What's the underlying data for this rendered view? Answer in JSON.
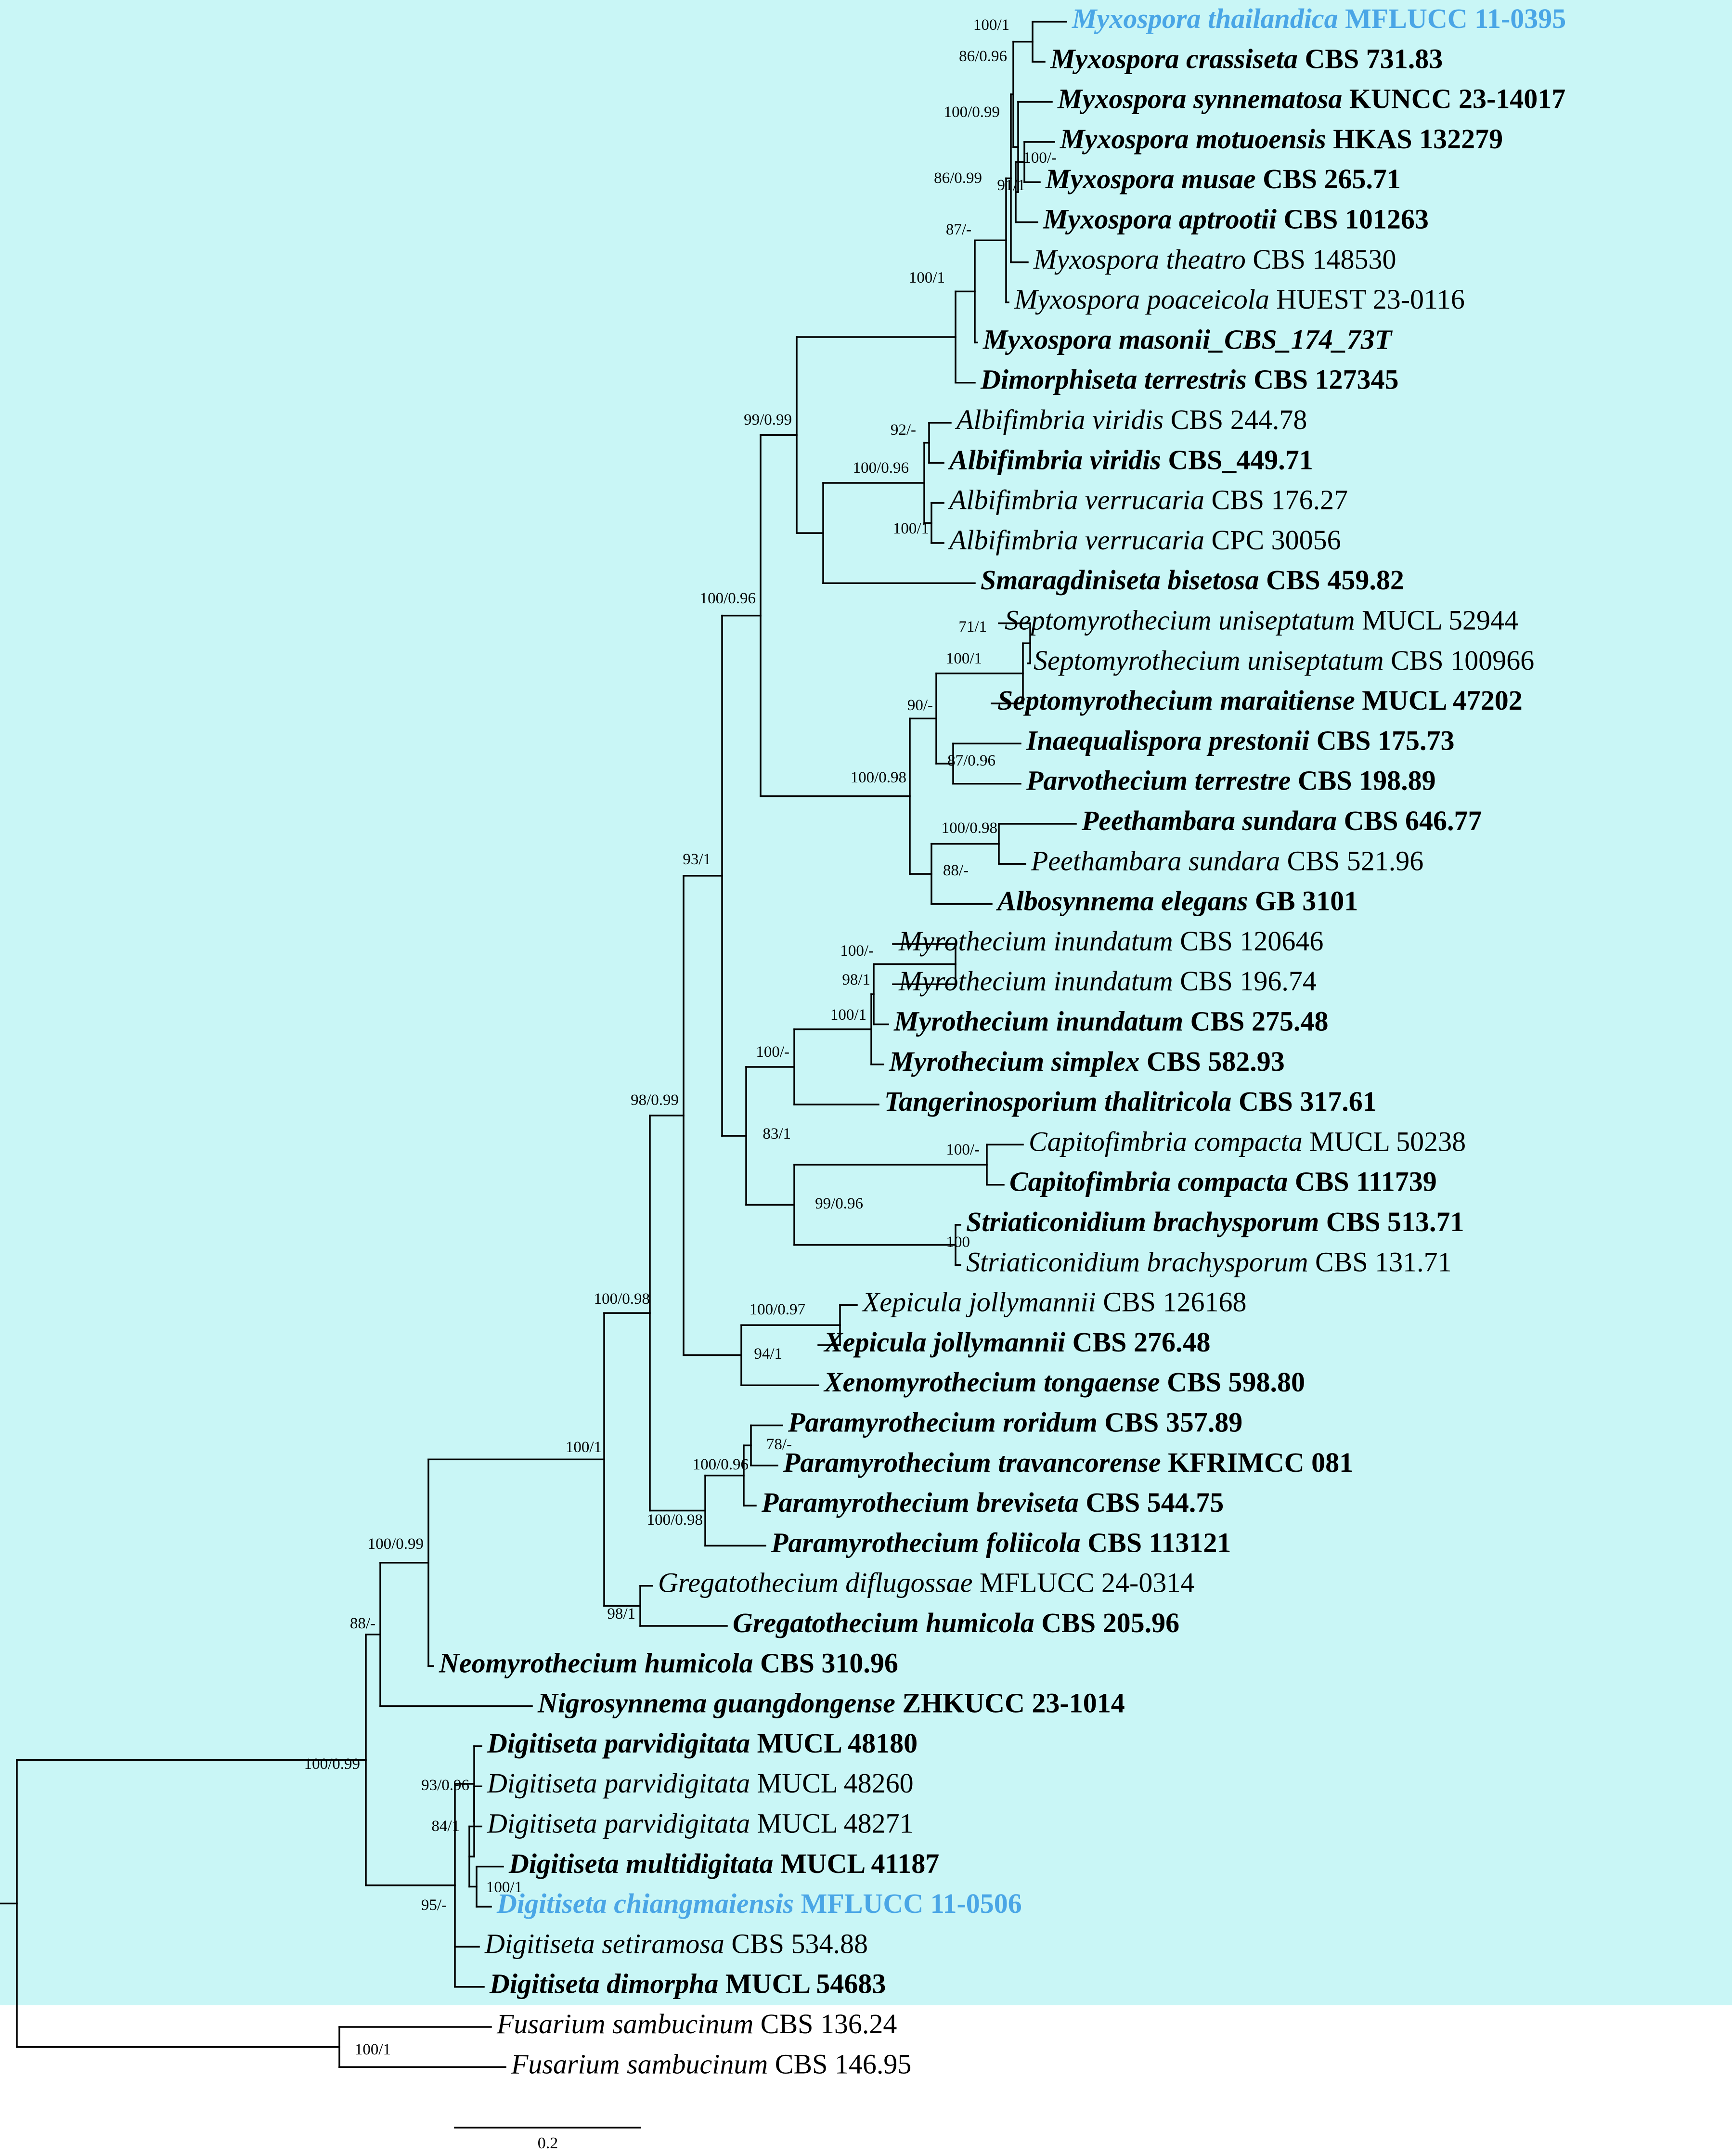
{
  "taxa": [
    {
      "id": "t1",
      "genus_species": "Myxospora thailandica",
      "strain": "MFLUCC 11-0395",
      "bold": true,
      "highlight": true
    },
    {
      "id": "t2",
      "genus_species": "Myxospora crassiseta",
      "strain": "CBS 731.83",
      "bold": true
    },
    {
      "id": "t3",
      "genus_species": "Myxospora synnematosa",
      "strain": "KUNCC 23-14017",
      "bold": true
    },
    {
      "id": "t4",
      "genus_species": "Myxospora motuoensis",
      "strain": "HKAS 132279",
      "bold": true
    },
    {
      "id": "t5",
      "genus_species": "Myxospora musae",
      "strain": "CBS 265.71",
      "bold": true
    },
    {
      "id": "t6",
      "genus_species": "Myxospora aptrootii",
      "strain": "CBS 101263",
      "bold": true
    },
    {
      "id": "t7",
      "genus_species": "Myxospora theatro",
      "strain": "CBS 148530",
      "bold": false
    },
    {
      "id": "t8",
      "genus_species": "Myxospora poaceicola",
      "strain": "HUEST 23-0116",
      "bold": false
    },
    {
      "id": "t9",
      "genus_species": "Myxospora masonii_CBS_174_73T",
      "strain": "",
      "bold": true
    },
    {
      "id": "t10",
      "genus_species": "Dimorphiseta terrestris",
      "strain": "CBS 127345",
      "bold": true
    },
    {
      "id": "t11",
      "genus_species": "Albifimbria viridis",
      "strain": "CBS 244.78",
      "bold": false
    },
    {
      "id": "t12",
      "genus_species": "Albifimbria viridis",
      "strain": "CBS_449.71",
      "bold": true
    },
    {
      "id": "t13",
      "genus_species": "Albifimbria verrucaria",
      "strain": "CBS 176.27",
      "bold": false
    },
    {
      "id": "t14",
      "genus_species": "Albifimbria verrucaria",
      "strain": "CPC 30056",
      "bold": false
    },
    {
      "id": "t15",
      "genus_species": "Smaragdiniseta bisetosa",
      "strain": "CBS 459.82",
      "bold": true
    },
    {
      "id": "t16",
      "genus_species": "Septomyrothecium uniseptatum",
      "strain": "MUCL 52944",
      "bold": false
    },
    {
      "id": "t17",
      "genus_species": "Septomyrothecium uniseptatum",
      "strain": "CBS 100966",
      "bold": false
    },
    {
      "id": "t18",
      "genus_species": "Septomyrothecium maraitiense",
      "strain": "MUCL 47202",
      "bold": true
    },
    {
      "id": "t19",
      "genus_species": "Inaequalispora prestonii",
      "strain": "CBS 175.73",
      "bold": true
    },
    {
      "id": "t20",
      "genus_species": "Parvothecium terrestre",
      "strain": "CBS 198.89",
      "bold": true
    },
    {
      "id": "t21",
      "genus_species": "Peethambara sundara",
      "strain": "CBS 646.77",
      "bold": true
    },
    {
      "id": "t22",
      "genus_species": "Peethambara sundara",
      "strain": "CBS 521.96",
      "bold": false
    },
    {
      "id": "t23",
      "genus_species": "Albosynnema elegans",
      "strain": "GB 3101",
      "bold": true
    },
    {
      "id": "t24",
      "genus_species": "Myrothecium inundatum",
      "strain": "CBS 120646",
      "bold": false
    },
    {
      "id": "t25",
      "genus_species": "Myrothecium inundatum",
      "strain": "CBS 196.74",
      "bold": false
    },
    {
      "id": "t26",
      "genus_species": "Myrothecium inundatum",
      "strain": "CBS 275.48",
      "bold": true
    },
    {
      "id": "t27",
      "genus_species": "Myrothecium simplex",
      "strain": "CBS 582.93",
      "bold": true
    },
    {
      "id": "t28",
      "genus_species": "Tangerinosporium thalitricola",
      "strain": "CBS 317.61",
      "bold": true
    },
    {
      "id": "t29",
      "genus_species": "Capitofimbria compacta",
      "strain": "MUCL 50238",
      "bold": false
    },
    {
      "id": "t30",
      "genus_species": "Capitofimbria compacta",
      "strain": "CBS 111739",
      "bold": true
    },
    {
      "id": "t31",
      "genus_species": "Striaticonidium brachysporum",
      "strain": "CBS 513.71",
      "bold": true
    },
    {
      "id": "t32",
      "genus_species": "Striaticonidium brachysporum",
      "strain": "CBS 131.71",
      "bold": false
    },
    {
      "id": "t33",
      "genus_species": "Xepicula jollymannii",
      "strain": "CBS 126168",
      "bold": false
    },
    {
      "id": "t34",
      "genus_species": "Xepicula jollymannii",
      "strain": "CBS 276.48",
      "bold": true
    },
    {
      "id": "t35",
      "genus_species": "Xenomyrothecium tongaense",
      "strain": "CBS 598.80",
      "bold": true
    },
    {
      "id": "t36",
      "genus_species": "Paramyrothecium roridum",
      "strain": "CBS 357.89",
      "bold": true
    },
    {
      "id": "t37",
      "genus_species": "Paramyrothecium travancorense",
      "strain": "KFRIMCC 081",
      "bold": true
    },
    {
      "id": "t38",
      "genus_species": "Paramyrothecium breviseta",
      "strain": "CBS 544.75",
      "bold": true
    },
    {
      "id": "t39",
      "genus_species": "Paramyrothecium foliicola",
      "strain": "CBS 113121",
      "bold": true
    },
    {
      "id": "t40",
      "genus_species": "Gregatothecium diflugossae",
      "strain": "MFLUCC 24-0314",
      "bold": false
    },
    {
      "id": "t41",
      "genus_species": "Gregatothecium humicola",
      "strain": "CBS 205.96",
      "bold": true
    },
    {
      "id": "t42",
      "genus_species": "Neomyrothecium humicola",
      "strain": "CBS 310.96",
      "bold": true
    },
    {
      "id": "t43",
      "genus_species": "Nigrosynnema guangdongense",
      "strain": "ZHKUCC 23-1014",
      "bold": true
    },
    {
      "id": "t44",
      "genus_species": "Digitiseta parvidigitata",
      "strain": "MUCL 48180",
      "bold": true
    },
    {
      "id": "t45",
      "genus_species": "Digitiseta parvidigitata",
      "strain": "MUCL 48260",
      "bold": false
    },
    {
      "id": "t46",
      "genus_species": "Digitiseta parvidigitata",
      "strain": "MUCL 48271",
      "bold": false
    },
    {
      "id": "t47",
      "genus_species": "Digitiseta multidigitata",
      "strain": "MUCL 41187",
      "bold": true
    },
    {
      "id": "t48",
      "genus_species": "Digitiseta chiangmaiensis",
      "strain": "MFLUCC 11-0506",
      "bold": true,
      "highlight": true
    },
    {
      "id": "t49",
      "genus_species": "Digitiseta setiramosa",
      "strain": "CBS 534.88",
      "bold": false
    },
    {
      "id": "t50",
      "genus_species": "Digitiseta dimorpha",
      "strain": "MUCL 54683",
      "bold": true
    },
    {
      "id": "t51",
      "genus_species": "Fusarium sambucinum",
      "strain": "CBS 136.24",
      "bold": false
    },
    {
      "id": "t52",
      "genus_species": "Fusarium sambucinum",
      "strain": "CBS 146.95",
      "bold": false
    }
  ],
  "supports": [
    {
      "node": "n_t1_t2",
      "label": "100/1"
    },
    {
      "node": "n_cras",
      "label": "86/0.96"
    },
    {
      "node": "n_syn",
      "label": "100/0.99"
    },
    {
      "node": "n_motu",
      "label": "100/-"
    },
    {
      "node": "n_musae",
      "label": "91/1"
    },
    {
      "node": "n_apt",
      "label": "86/0.99"
    },
    {
      "node": "n_theatro",
      "label": "87/-"
    },
    {
      "node": "n_myxo",
      "label": "100/1"
    },
    {
      "node": "n_albiv",
      "label": "92/-"
    },
    {
      "node": "n_albi",
      "label": "100/0.96"
    },
    {
      "node": "n_albverr",
      "label": "100/1"
    },
    {
      "node": "n_upper",
      "label": "99/0.99"
    },
    {
      "node": "n_sept",
      "label": "71/1"
    },
    {
      "node": "n_sept2",
      "label": "100/1"
    },
    {
      "node": "n_sept3",
      "label": "90/-"
    },
    {
      "node": "n_inaeq",
      "label": "87/0.96"
    },
    {
      "node": "n_stach",
      "label": "100/0.98"
    },
    {
      "node": "n_peeth",
      "label": "100/0.98"
    },
    {
      "node": "n_peeth2",
      "label": "88/-"
    },
    {
      "node": "n_mid",
      "label": "100/0.96"
    },
    {
      "node": "n_myro1",
      "label": "100/-"
    },
    {
      "node": "n_myro2",
      "label": "98/1"
    },
    {
      "node": "n_myro3",
      "label": "100/1"
    },
    {
      "node": "n_myrosimp",
      "label": "100/-"
    },
    {
      "node": "n_capito",
      "label": "100/-"
    },
    {
      "node": "n_stri",
      "label": "100"
    },
    {
      "node": "n_capstri",
      "label": "99/0.96"
    },
    {
      "node": "n_myrogrp",
      "label": "83/1"
    },
    {
      "node": "n_big",
      "label": "93/1"
    },
    {
      "node": "n_xep",
      "label": "100/0.97"
    },
    {
      "node": "n_xep2",
      "label": "94/1"
    },
    {
      "node": "n_xepbig",
      "label": "98/0.99"
    },
    {
      "node": "n_param1",
      "label": "78/-"
    },
    {
      "node": "n_param2",
      "label": "100/0.96"
    },
    {
      "node": "n_param3",
      "label": "100/0.98"
    },
    {
      "node": "n_greg",
      "label": "98/1"
    },
    {
      "node": "n_core",
      "label": "100/0.98"
    },
    {
      "node": "n_core2",
      "label": "100/1"
    },
    {
      "node": "n_neo",
      "label": "100/0.99"
    },
    {
      "node": "n_nigro",
      "label": "88/-"
    },
    {
      "node": "n_dig1",
      "label": "93/0.96"
    },
    {
      "node": "n_dig2",
      "label": "84/1"
    },
    {
      "node": "n_dig3",
      "label": "100/1"
    },
    {
      "node": "n_dig4",
      "label": "95/-"
    },
    {
      "node": "n_ingroup",
      "label": "100/0.99"
    },
    {
      "node": "n_fus",
      "label": "100/1"
    }
  ],
  "scale": {
    "label": "0.2",
    "value": 0.2
  },
  "colors": {
    "background": "#c9f6f6",
    "highlight": "#4aa6e6",
    "branch": "#000000"
  }
}
